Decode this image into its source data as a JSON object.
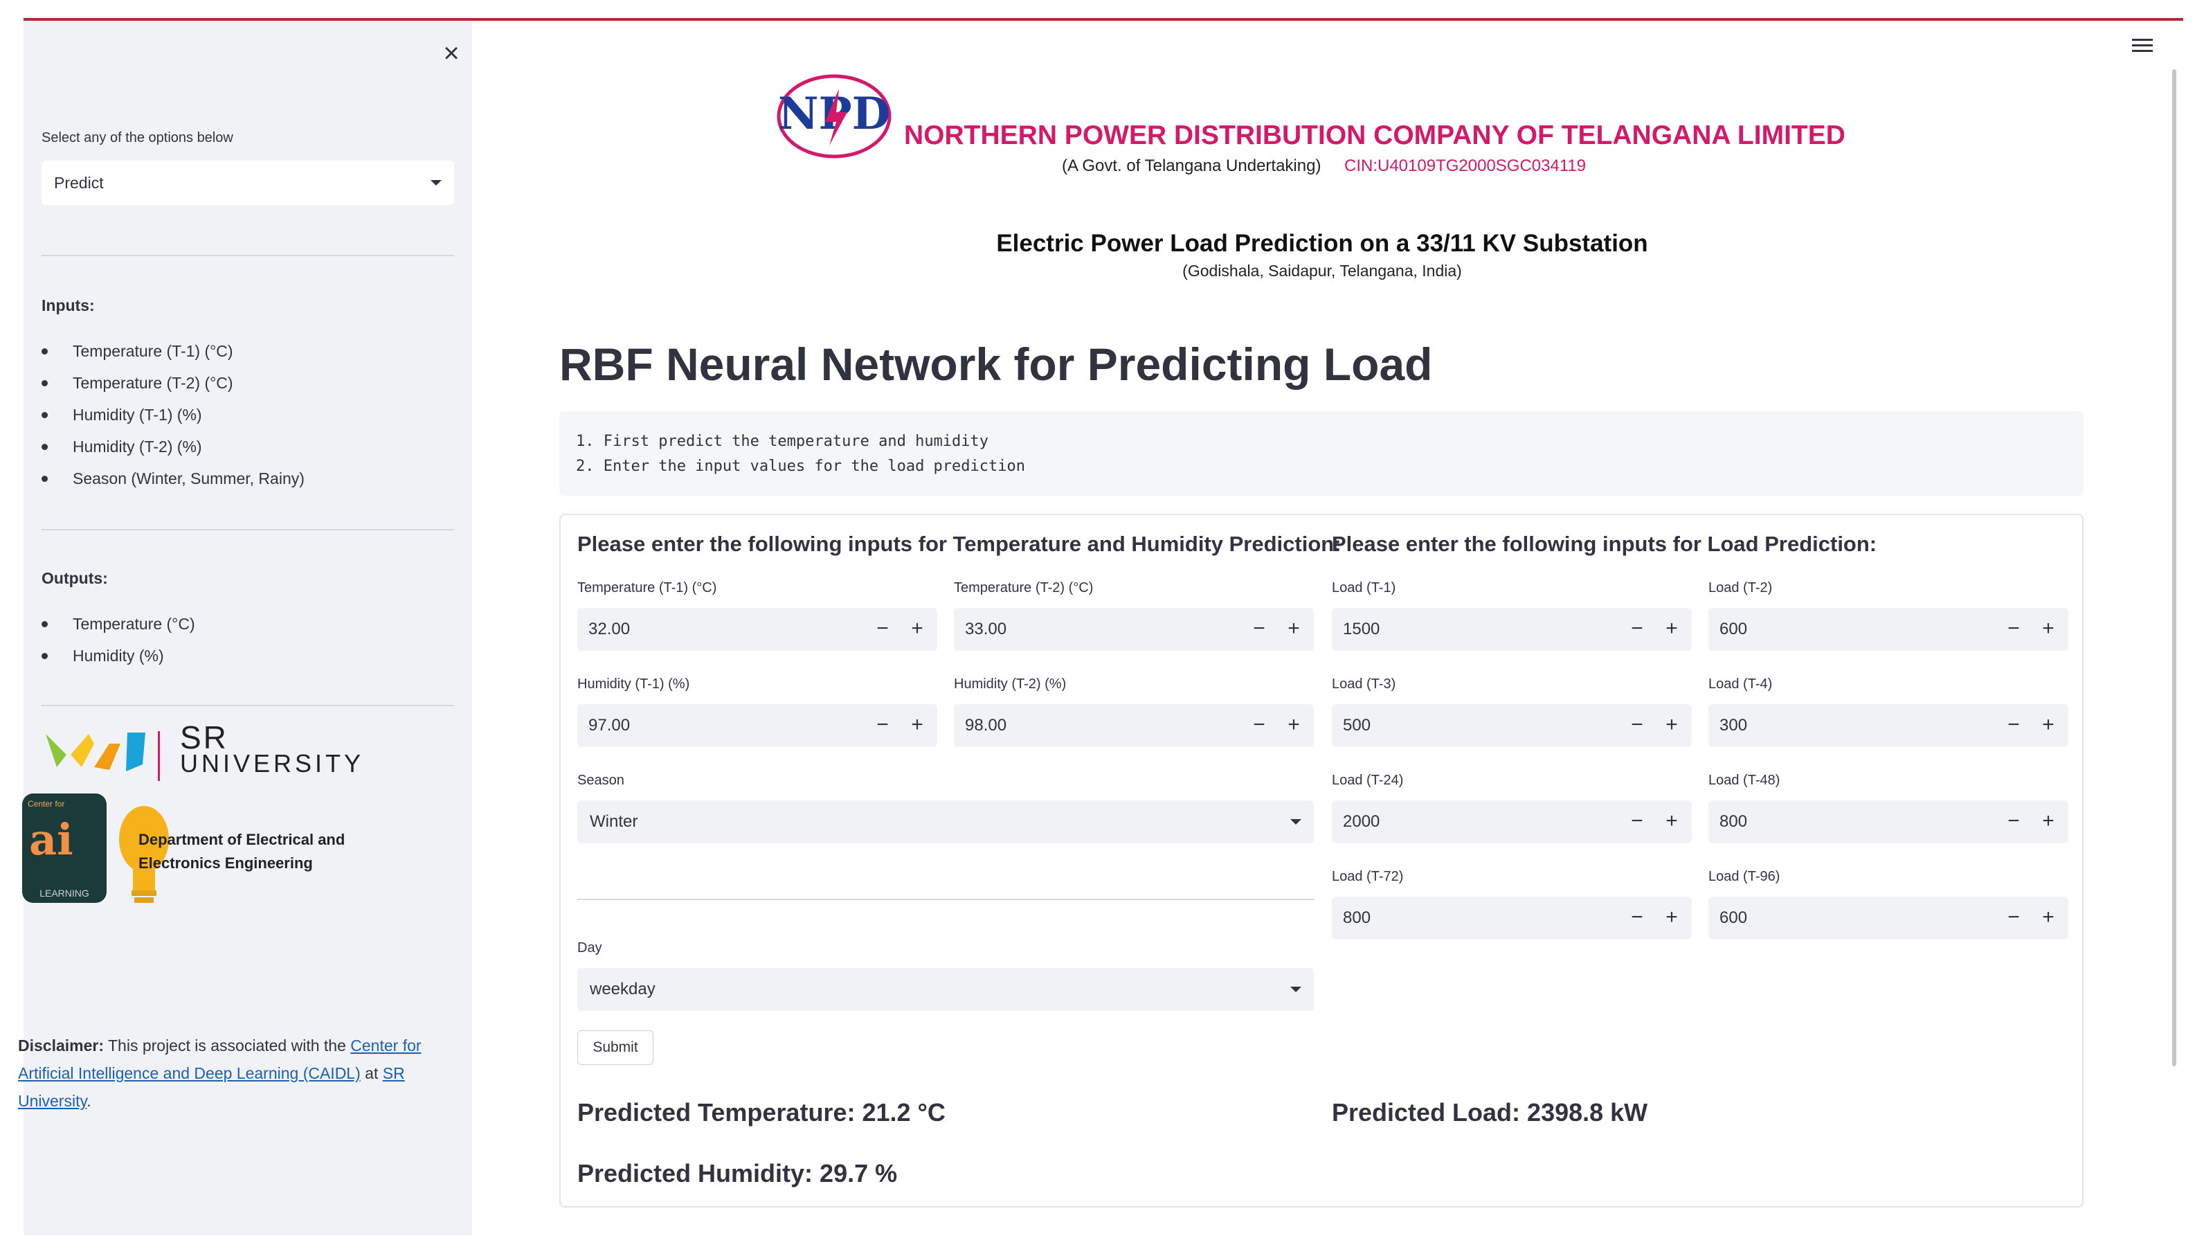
{
  "sidebar": {
    "select_label": "Select any of the options below",
    "select_value": "Predict",
    "inputs_heading": "Inputs:",
    "inputs": [
      "Temperature (T-1) (°C)",
      "Temperature (T-2) (°C)",
      "Humidity (T-1) (%)",
      "Humidity (T-2) (%)",
      "Season (Winter, Summer, Rainy)"
    ],
    "outputs_heading": "Outputs:",
    "outputs": [
      "Temperature (°C)",
      "Humidity (%)"
    ],
    "sr_logo_line1": "SR",
    "sr_logo_line2": "UNIVERSITY",
    "ai_badge_top": "Center for",
    "ai_badge_mark": "ai",
    "ai_badge_bottom": "LEARNING",
    "dept_line1": "Department of Electrical and",
    "dept_line2": "Electronics Engineering",
    "disclaimer": {
      "label": "Disclaimer:",
      "text1": " This project is associated with the ",
      "link1": "Center for Artificial Intelligence and Deep Learning (CAIDL)",
      "text2": " at ",
      "link2": "SR University",
      "text3": "."
    }
  },
  "header": {
    "logo_text": "NPD",
    "company": "NORTHERN POWER DISTRIBUTION COMPANY OF TELANGANA LIMITED",
    "govt": "(A Govt. of Telangana Undertaking)",
    "cin": "CIN:U40109TG2000SGC034119",
    "subtitle": "Electric Power Load Prediction on a 33/11 KV Substation",
    "location": "(Godishala, Saidapur, Telangana, India)"
  },
  "main": {
    "title": "RBF Neural Network for Predicting Load",
    "steps": [
      "1. First predict the temperature and humidity",
      "2. Enter the input values for the load prediction"
    ]
  },
  "form": {
    "temp_heading": "Please enter the following inputs for Temperature and Humidity Prediction:",
    "load_heading": "Please enter the following inputs for Load Prediction:",
    "temp_inputs": [
      {
        "label": "Temperature (T-1) (°C)",
        "value": "32.00"
      },
      {
        "label": "Temperature (T-2) (°C)",
        "value": "33.00"
      },
      {
        "label": "Humidity (T-1) (%)",
        "value": "97.00"
      },
      {
        "label": "Humidity (T-2) (%)",
        "value": "98.00"
      }
    ],
    "season": {
      "label": "Season",
      "value": "Winter"
    },
    "day": {
      "label": "Day",
      "value": "weekday"
    },
    "load_inputs": [
      {
        "label": "Load (T-1)",
        "value": "1500"
      },
      {
        "label": "Load (T-2)",
        "value": "600"
      },
      {
        "label": "Load (T-3)",
        "value": "500"
      },
      {
        "label": "Load (T-4)",
        "value": "300"
      },
      {
        "label": "Load (T-24)",
        "value": "2000"
      },
      {
        "label": "Load (T-48)",
        "value": "800"
      },
      {
        "label": "Load (T-72)",
        "value": "800"
      },
      {
        "label": "Load (T-96)",
        "value": "600"
      }
    ],
    "stepper_minus": "−",
    "stepper_plus": "+",
    "submit": "Submit",
    "predicted_temperature": "Predicted Temperature: 21.2 °C",
    "predicted_humidity": "Predicted Humidity: 29.7 %",
    "predicted_load": "Predicted Load: 2398.8 kW"
  },
  "colors": {
    "accent_line": "#b22a3a",
    "brand_pink": "#d4186a",
    "link": "#1e5fb4",
    "sidebar_bg": "#f0f2f6"
  }
}
